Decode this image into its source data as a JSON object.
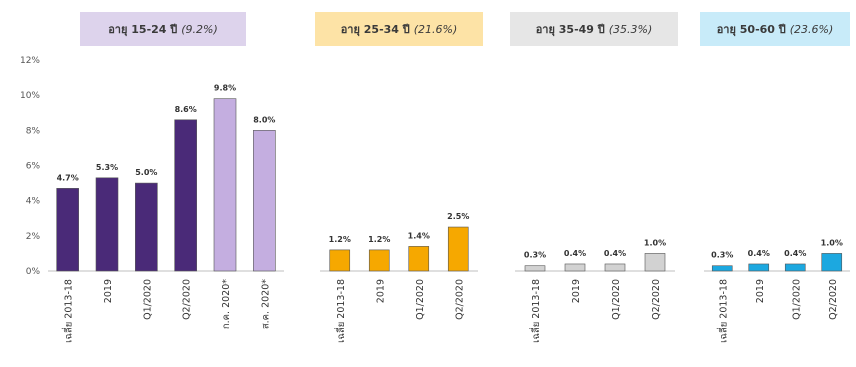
{
  "chart_data": {
    "type": "bar",
    "y_ticks": [
      "0%",
      "2%",
      "4%",
      "6%",
      "8%",
      "10%",
      "12%"
    ],
    "ylim": [
      0,
      12
    ],
    "grid": false,
    "groups": [
      {
        "title": "อายุ 15-24 ปี",
        "share": "(9.2%)",
        "header_color": "#ddd3ec",
        "categories": [
          "เฉลี่ย 2013-18",
          "2019",
          "Q1/2020",
          "Q2/2020",
          "ก.ค. 2020*",
          "ส.ค. 2020*"
        ],
        "values": [
          4.7,
          5.3,
          5.0,
          8.6,
          9.8,
          8.0
        ],
        "value_labels": [
          "4.7%",
          "5.3%",
          "5.0%",
          "8.6%",
          "9.8%",
          "8.0%"
        ],
        "bar_colors": [
          "#4a2a78",
          "#4a2a78",
          "#4a2a78",
          "#4a2a78",
          "#c4aee0",
          "#c4aee0"
        ]
      },
      {
        "title": "อายุ 25-34 ปี",
        "share": "(21.6%)",
        "header_color": "#fde3a6",
        "categories": [
          "เฉลี่ย 2013-18",
          "2019",
          "Q1/2020",
          "Q2/2020"
        ],
        "values": [
          1.2,
          1.2,
          1.4,
          2.5
        ],
        "value_labels": [
          "1.2%",
          "1.2%",
          "1.4%",
          "2.5%"
        ],
        "bar_colors": [
          "#f6a800",
          "#f6a800",
          "#f6a800",
          "#f6a800"
        ]
      },
      {
        "title": "อายุ 35-49 ปี",
        "share": "(35.3%)",
        "header_color": "#e6e6e6",
        "categories": [
          "เฉลี่ย 2013-18",
          "2019",
          "Q1/2020",
          "Q2/2020"
        ],
        "values": [
          0.3,
          0.4,
          0.4,
          1.0
        ],
        "value_labels": [
          "0.3%",
          "0.4%",
          "0.4%",
          "1.0%"
        ],
        "bar_colors": [
          "#d2d2d2",
          "#d2d2d2",
          "#d2d2d2",
          "#d2d2d2"
        ]
      },
      {
        "title": "อายุ 50-60 ปี",
        "share": "(23.6%)",
        "header_color": "#c8ebf9",
        "categories": [
          "เฉลี่ย 2013-18",
          "2019",
          "Q1/2020",
          "Q2/2020"
        ],
        "values": [
          0.3,
          0.4,
          0.4,
          1.0
        ],
        "value_labels": [
          "0.3%",
          "0.4%",
          "0.4%",
          "1.0%"
        ],
        "bar_colors": [
          "#1ca8e0",
          "#1ca8e0",
          "#1ca8e0",
          "#1ca8e0"
        ]
      }
    ]
  }
}
